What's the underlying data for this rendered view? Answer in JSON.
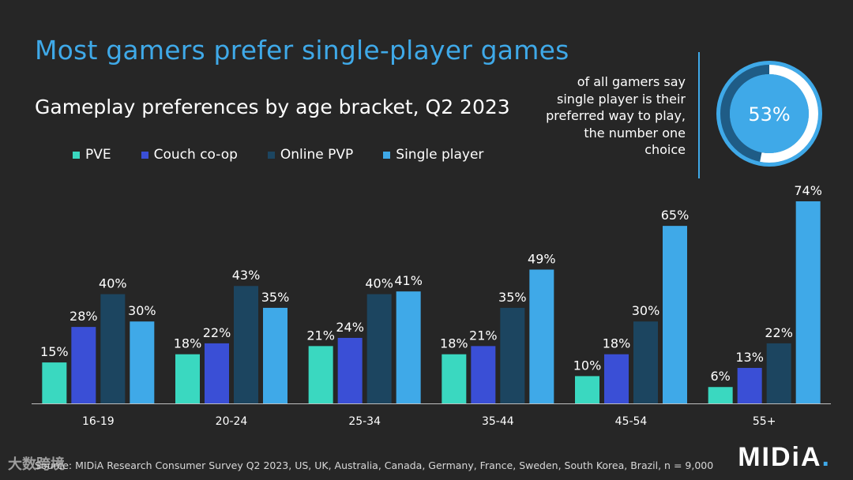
{
  "header": {
    "title": "Most gamers prefer single-player games",
    "subtitle": "Gameplay preferences by age bracket, Q2 2023"
  },
  "callout": {
    "lines": [
      "of all gamers say",
      "single player is their",
      "preferred way to play,",
      "the number one",
      "choice"
    ],
    "value_label": "53%",
    "value": 53
  },
  "legend": [
    {
      "label": "PVE",
      "color": "#3ad8c0"
    },
    {
      "label": "Couch co-op",
      "color": "#3a4fd6"
    },
    {
      "label": "Online PVP",
      "color": "#1c4560"
    },
    {
      "label": "Single player",
      "color": "#3fa9e8"
    }
  ],
  "chart_data": {
    "type": "bar",
    "title": "Gameplay preferences by age bracket, Q2 2023",
    "categories": [
      "16-19",
      "20-24",
      "25-34",
      "35-44",
      "45-54",
      "55+"
    ],
    "series": [
      {
        "name": "PVE",
        "color": "#3ad8c0",
        "values": [
          15,
          18,
          21,
          18,
          10,
          6
        ]
      },
      {
        "name": "Couch co-op",
        "color": "#3a4fd6",
        "values": [
          28,
          22,
          24,
          21,
          18,
          13
        ]
      },
      {
        "name": "Online PVP",
        "color": "#1c4560",
        "values": [
          40,
          43,
          40,
          35,
          30,
          22
        ]
      },
      {
        "name": "Single player",
        "color": "#3fa9e8",
        "values": [
          30,
          35,
          41,
          49,
          65,
          74
        ]
      }
    ],
    "value_suffix": "%",
    "ylim": [
      0,
      74
    ],
    "xlabel": "",
    "ylabel": "",
    "grid": false,
    "legend_position": "top-left"
  },
  "footer": {
    "source": "Source: MIDiA Research Consumer Survey Q2 2023, US, UK, Australia, Canada, Germany, France, Sweden, South Korea, Brazil, n = 9,000",
    "logo": "MIDiA",
    "logo_dot": ".",
    "watermark": "大数跨境"
  }
}
